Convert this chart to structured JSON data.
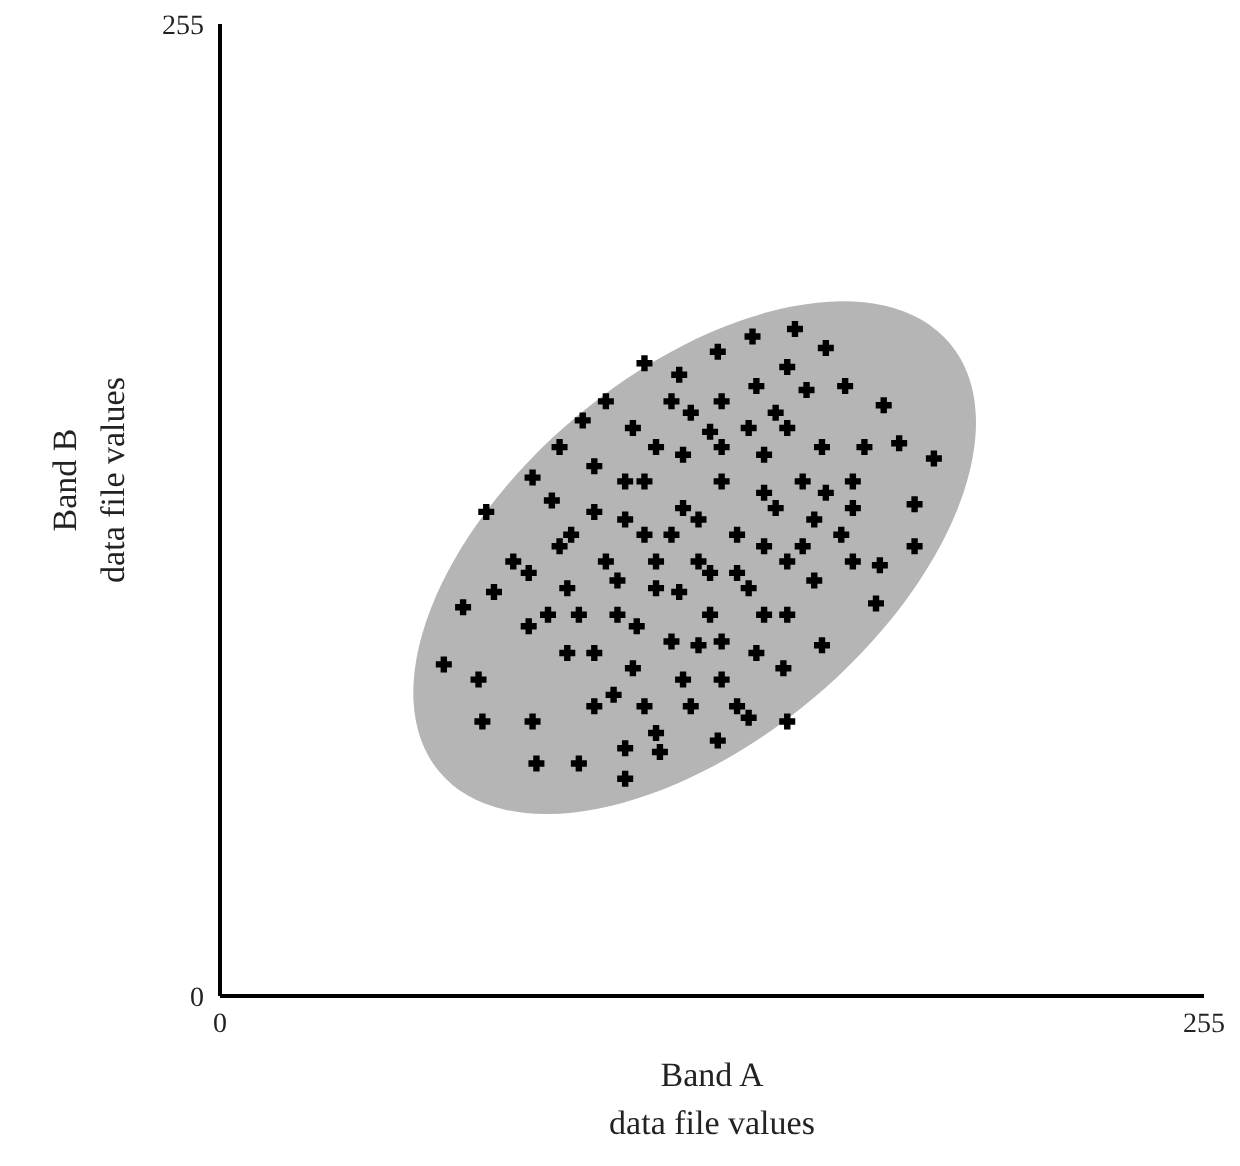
{
  "chart_data": {
    "type": "scatter",
    "xlabel": "Band A\ndata file values",
    "ylabel": "Band B\ndata file values",
    "xlim": [
      0,
      255
    ],
    "ylim": [
      0,
      255
    ],
    "xticks": [
      0,
      255
    ],
    "yticks": [
      0,
      255
    ],
    "grid": false,
    "legend": false,
    "marker": "cross",
    "series": [
      {
        "color": "#000000",
        "x": [
          138,
          149,
          157,
          152,
          162,
          172,
          176,
          185,
          167,
          180,
          180,
          171,
          170,
          147,
          137,
          129,
          114,
          105,
          93,
          82,
          81,
          68,
          67,
          58,
          63,
          71,
          69,
          81,
          94,
          110,
          129,
          119,
          147,
          88,
          97,
          105,
          113,
          122,
          130,
          139,
          147,
          156,
          164,
          161,
          154,
          147,
          139,
          130,
          122,
          113,
          105,
          97,
          90,
          85,
          80,
          76,
          90,
          100,
          110,
          120,
          130,
          141,
          151,
          107,
          117,
          127,
          137,
          97,
          86,
          103,
          113,
          124,
          134,
          144,
          154,
          107,
          117,
          127,
          137,
          147,
          110,
          120,
          130,
          141,
          97,
          102,
          93,
          80,
          110,
          120,
          141,
          151,
          124,
          113,
          134,
          157,
          164,
          127,
          117,
          103,
          141,
          105,
          130,
          144,
          124,
          134,
          108,
          119,
          88,
          100,
          91,
          146,
          156,
          164
        ],
        "values": [
          173,
          175,
          170,
          159,
          160,
          155,
          145,
          141,
          144,
          129,
          118,
          113,
          103,
          72,
          73,
          67,
          64,
          57,
          61,
          61,
          72,
          72,
          83,
          87,
          102,
          106,
          127,
          136,
          151,
          166,
          169,
          163,
          165,
          118,
          127,
          135,
          144,
          153,
          156,
          160,
          149,
          144,
          135,
          121,
          109,
          100,
          90,
          83,
          76,
          69,
          65,
          76,
          90,
          100,
          111,
          114,
          107,
          114,
          121,
          128,
          135,
          142,
          135,
          149,
          156,
          148,
          149,
          139,
          130,
          100,
          107,
          114,
          121,
          128,
          125,
          86,
          93,
          100,
          107,
          114,
          76,
          83,
          93,
          100,
          90,
          79,
          100,
          97,
          135,
          142,
          132,
          118,
          125,
          114,
          111,
          132,
          128,
          111,
          121,
          109,
          118,
          125,
          144,
          153,
          92,
          76,
          97,
          106,
          144,
          156,
          121,
          86,
          92,
          114
        ]
      }
    ]
  }
}
